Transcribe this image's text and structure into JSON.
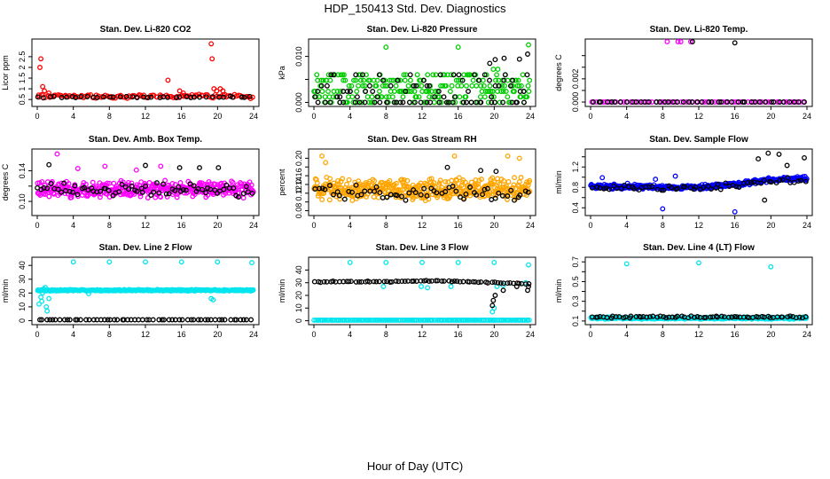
{
  "figure": {
    "title": "HDP_150413  Std. Dev. Diagnostics",
    "xlabel": "Hour of Day (UTC)"
  },
  "chart_data": [
    {
      "type": "scatter",
      "title": "Stan. Dev. Li-820 CO2",
      "ylabel": "Licor ppm",
      "xlim": [
        0,
        24
      ],
      "ylim": [
        0.3,
        3.2
      ],
      "xticks": [
        0,
        4,
        8,
        12,
        16,
        20,
        24
      ],
      "yticks": [
        0.5,
        1.0,
        1.5,
        2.0,
        2.5
      ],
      "ytick_labels": [
        "0.5",
        "1",
        "1.5",
        "2",
        "2.5"
      ],
      "series": [
        {
          "color": "#ff0000",
          "kind": "band",
          "level": 0.65,
          "spread": 0.12,
          "n": 110,
          "seed": 11,
          "extra": [
            [
              0.3,
              2.0
            ],
            [
              0.4,
              2.4
            ],
            [
              0.6,
              1.1
            ],
            [
              0.8,
              0.9
            ],
            [
              1.3,
              0.8
            ],
            [
              14.5,
              1.4
            ],
            [
              15.8,
              0.9
            ],
            [
              16.2,
              0.8
            ],
            [
              19.3,
              3.1
            ],
            [
              19.4,
              2.4
            ],
            [
              19.6,
              1.0
            ],
            [
              19.9,
              0.9
            ],
            [
              20.3,
              1.0
            ],
            [
              20.6,
              0.9
            ]
          ]
        },
        {
          "color": "#000000",
          "kind": "band",
          "level": 0.62,
          "spread": 0.06,
          "n": 40,
          "seed": 12,
          "extra": []
        }
      ]
    },
    {
      "type": "scatter",
      "title": "Stan. Dev. Li-820 Pressure",
      "ylabel": "kPa",
      "xlim": [
        0,
        24
      ],
      "ylim": [
        -0.0003,
        0.0132
      ],
      "xticks": [
        0,
        4,
        8,
        12,
        16,
        20,
        24
      ],
      "yticks": [
        0.0,
        0.005,
        0.01
      ],
      "ytick_labels": [
        "0.000",
        "",
        "0.010"
      ],
      "series": [
        {
          "color": "#00cc00",
          "kind": "levels",
          "levels": [
            0.0,
            0.0012,
            0.0024,
            0.0036,
            0.0048,
            0.006
          ],
          "n": 240,
          "seed": 21,
          "extra": [
            [
              8.0,
              0.012
            ],
            [
              16.0,
              0.012
            ],
            [
              23.8,
              0.0125
            ],
            [
              19.9,
              0.0072
            ],
            [
              20.4,
              0.0072
            ]
          ]
        },
        {
          "color": "#000000",
          "kind": "levels",
          "levels": [
            0.0,
            0.0012,
            0.0024,
            0.0036,
            0.0048,
            0.006
          ],
          "n": 60,
          "seed": 22,
          "extra": [
            [
              19.5,
              0.0085
            ],
            [
              20.1,
              0.0093
            ],
            [
              21.1,
              0.0096
            ],
            [
              22.8,
              0.0094
            ],
            [
              23.7,
              0.0105
            ]
          ]
        },
        {
          "color": "#000000",
          "kind": "band",
          "level": 0.0,
          "spread": 0.0,
          "n": 30,
          "seed": 23,
          "extra": []
        }
      ]
    },
    {
      "type": "scatter",
      "title": "Stan. Dev. Li-820 Temp.",
      "ylabel": "degrees C",
      "xlim": [
        0,
        24
      ],
      "ylim": [
        -0.00015,
        0.0052
      ],
      "xticks": [
        0,
        4,
        8,
        12,
        16,
        20,
        24
      ],
      "yticks": [
        0.0,
        0.001,
        0.002,
        0.003,
        0.004
      ],
      "ytick_labels": [
        "0.000",
        "",
        "0.002",
        "",
        ""
      ],
      "series": [
        {
          "color": "#ff00ff",
          "kind": "band",
          "level": 0.0,
          "spread": 0.0,
          "n": 60,
          "seed": 31,
          "extra": [
            [
              8.5,
              0.0052
            ],
            [
              9.7,
              0.0052
            ],
            [
              10.0,
              0.0052
            ],
            [
              11.1,
              0.0052
            ]
          ]
        },
        {
          "color": "#000000",
          "kind": "band",
          "level": 0.0,
          "spread": 0.0,
          "n": 45,
          "seed": 32,
          "extra": [
            [
              11.3,
              0.0052
            ],
            [
              16.0,
              0.0051
            ]
          ]
        }
      ]
    },
    {
      "type": "scatter",
      "title": "Stan. Dev. Amb. Box Temp.",
      "ylabel": "degrees C",
      "xlim": [
        0,
        24
      ],
      "ylim": [
        0.085,
        0.165
      ],
      "xticks": [
        0,
        4,
        8,
        12,
        16,
        20,
        24
      ],
      "yticks": [
        0.1,
        0.12,
        0.14
      ],
      "ytick_labels": [
        "0.10",
        "",
        "0.14"
      ],
      "series": [
        {
          "color": "#ff00ff",
          "kind": "band",
          "level": 0.116,
          "spread": 0.012,
          "n": 380,
          "seed": 41,
          "extra": [
            [
              2.2,
              0.162
            ],
            [
              4.5,
              0.143
            ],
            [
              7.5,
              0.146
            ],
            [
              11.0,
              0.141
            ],
            [
              13.7,
              0.146
            ]
          ]
        },
        {
          "color": "#000000",
          "kind": "band",
          "level": 0.116,
          "spread": 0.011,
          "n": 70,
          "seed": 42,
          "extra": [
            [
              1.3,
              0.148
            ],
            [
              12.0,
              0.147
            ],
            [
              15.8,
              0.144
            ],
            [
              18.0,
              0.144
            ],
            [
              20.1,
              0.144
            ]
          ]
        }
      ]
    },
    {
      "type": "scatter",
      "title": "Stan. Dev. Gas Stream RH",
      "ylabel": "percent",
      "xlim": [
        0,
        24
      ],
      "ylim": [
        0.075,
        0.215
      ],
      "xticks": [
        0,
        4,
        8,
        12,
        16,
        20,
        24
      ],
      "yticks": [
        0.08,
        0.1,
        0.12,
        0.14,
        0.16,
        0.18,
        0.2
      ],
      "ytick_labels": [
        "0.08",
        "",
        "0.12",
        "0.14",
        "0.16",
        "",
        "0.20"
      ],
      "series": [
        {
          "color": "#ffa500",
          "kind": "band",
          "level": 0.13,
          "spread": 0.028,
          "n": 420,
          "seed": 51,
          "extra": [
            [
              0.9,
              0.205
            ],
            [
              1.3,
              0.19
            ],
            [
              15.6,
              0.205
            ],
            [
              21.5,
              0.205
            ],
            [
              22.8,
              0.2
            ]
          ]
        },
        {
          "color": "#000000",
          "kind": "band",
          "level": 0.12,
          "spread": 0.02,
          "n": 60,
          "seed": 52,
          "extra": [
            [
              14.8,
              0.179
            ],
            [
              18.5,
              0.172
            ],
            [
              20.2,
              0.17
            ]
          ]
        }
      ]
    },
    {
      "type": "scatter",
      "title": "Stan. Dev. Sample Flow",
      "ylabel": "ml/min",
      "xlim": [
        0,
        24
      ],
      "ylim": [
        0.3,
        1.5
      ],
      "xticks": [
        0,
        4,
        8,
        12,
        16,
        20,
        24
      ],
      "yticks": [
        0.4,
        0.6,
        0.8,
        1.0,
        1.2,
        1.4
      ],
      "ytick_labels": [
        "0.4",
        "",
        "0.8",
        "",
        "1.2",
        ""
      ],
      "series": [
        {
          "color": "#0000ff",
          "kind": "trend",
          "points": [
            [
              0,
              0.82
            ],
            [
              12,
              0.8
            ],
            [
              16,
              0.86
            ],
            [
              20,
              0.95
            ],
            [
              24,
              0.98
            ]
          ],
          "spread": 0.05,
          "n": 420,
          "seed": 61,
          "extra": [
            [
              1.3,
              0.99
            ],
            [
              4.1,
              0.88
            ],
            [
              7.2,
              0.96
            ],
            [
              8.0,
              0.38
            ],
            [
              9.4,
              1.02
            ],
            [
              16.0,
              0.32
            ]
          ]
        },
        {
          "color": "#000000",
          "kind": "trend",
          "points": [
            [
              0,
              0.8
            ],
            [
              12,
              0.78
            ],
            [
              16,
              0.84
            ],
            [
              20,
              0.92
            ],
            [
              24,
              0.95
            ]
          ],
          "spread": 0.06,
          "n": 60,
          "seed": 62,
          "extra": [
            [
              18.6,
              1.36
            ],
            [
              19.7,
              1.47
            ],
            [
              20.9,
              1.45
            ],
            [
              21.8,
              1.23
            ],
            [
              23.7,
              1.38
            ],
            [
              19.3,
              0.55
            ]
          ]
        }
      ]
    },
    {
      "type": "scatter",
      "title": "Stan. Dev. Line 2 Flow",
      "ylabel": "ml/min",
      "xlim": [
        0,
        24
      ],
      "ylim": [
        -1,
        44
      ],
      "xticks": [
        0,
        4,
        8,
        12,
        16,
        20,
        24
      ],
      "yticks": [
        0,
        10,
        20,
        30,
        40
      ],
      "ytick_labels": [
        "0",
        "10",
        "20",
        "30",
        "40"
      ],
      "series": [
        {
          "color": "#00e5ee",
          "kind": "band",
          "level": 22.0,
          "spread": 0.6,
          "n": 300,
          "seed": 71,
          "extra": [
            [
              0.2,
              12
            ],
            [
              0.4,
              17
            ],
            [
              0.5,
              14
            ],
            [
              0.6,
              20
            ],
            [
              0.7,
              23
            ],
            [
              0.9,
              24
            ],
            [
              1.0,
              10
            ],
            [
              1.1,
              7
            ],
            [
              1.3,
              16
            ],
            [
              4.0,
              42.5
            ],
            [
              8.0,
              42.5
            ],
            [
              12.0,
              42.5
            ],
            [
              16.0,
              42.5
            ],
            [
              20.0,
              42.5
            ],
            [
              23.8,
              42
            ],
            [
              19.3,
              16
            ],
            [
              19.5,
              15
            ],
            [
              5.7,
              19.5
            ]
          ]
        },
        {
          "color": "#000000",
          "kind": "band",
          "level": 0.6,
          "spread": 0.0,
          "n": 60,
          "seed": 72,
          "extra": []
        }
      ]
    },
    {
      "type": "scatter",
      "title": "Stan. Dev. Line 3 Flow",
      "ylabel": "ml/min",
      "xlim": [
        0,
        24
      ],
      "ylim": [
        -1,
        48
      ],
      "xticks": [
        0,
        4,
        8,
        12,
        16,
        20,
        24
      ],
      "yticks": [
        0,
        10,
        20,
        30,
        40
      ],
      "ytick_labels": [
        "0",
        "10",
        "20",
        "30",
        "40"
      ],
      "series": [
        {
          "color": "#00e5ee",
          "kind": "band",
          "level": 0.5,
          "spread": 0.0,
          "n": 150,
          "seed": 81,
          "extra": [
            [
              4.0,
              46
            ],
            [
              8.0,
              46
            ],
            [
              12.0,
              46
            ],
            [
              16.0,
              46
            ],
            [
              20.0,
              46
            ],
            [
              23.8,
              44
            ],
            [
              7.7,
              27
            ],
            [
              11.9,
              27
            ],
            [
              12.6,
              26
            ],
            [
              15.2,
              27
            ],
            [
              19.8,
              7
            ],
            [
              20.0,
              10
            ],
            [
              20.3,
              27
            ],
            [
              21.0,
              28
            ],
            [
              23.5,
              30
            ]
          ]
        },
        {
          "color": "#000000",
          "kind": "trend",
          "points": [
            [
              0,
              30.5
            ],
            [
              4,
              31
            ],
            [
              8,
              30.8
            ],
            [
              12,
              31.5
            ],
            [
              16,
              31
            ],
            [
              20,
              30
            ],
            [
              24,
              29
            ]
          ],
          "spread": 0.5,
          "n": 70,
          "seed": 82,
          "extra": [
            [
              19.8,
              12
            ],
            [
              19.9,
              16
            ],
            [
              20.1,
              20
            ],
            [
              21.0,
              24
            ],
            [
              22.5,
              27
            ],
            [
              23.7,
              24
            ],
            [
              23.8,
              27
            ]
          ]
        }
      ]
    },
    {
      "type": "scatter",
      "title": "Stan. Dev. Line 4 (LT) Flow",
      "ylabel": "ml/min",
      "xlim": [
        0,
        24
      ],
      "ylim": [
        0.09,
        0.72
      ],
      "xticks": [
        0,
        4,
        8,
        12,
        16,
        20,
        24
      ],
      "yticks": [
        0.1,
        0.2,
        0.3,
        0.4,
        0.5,
        0.6,
        0.7
      ],
      "ytick_labels": [
        "0.1",
        "",
        "0.3",
        "",
        "0.5",
        "",
        "0.7"
      ],
      "series": [
        {
          "color": "#00e5ee",
          "kind": "band",
          "level": 0.13,
          "spread": 0.012,
          "n": 320,
          "seed": 91,
          "extra": [
            [
              4.0,
              0.68
            ],
            [
              12.0,
              0.69
            ],
            [
              20.0,
              0.65
            ]
          ]
        },
        {
          "color": "#000000",
          "kind": "band",
          "level": 0.14,
          "spread": 0.012,
          "n": 70,
          "seed": 92,
          "extra": []
        }
      ]
    }
  ]
}
